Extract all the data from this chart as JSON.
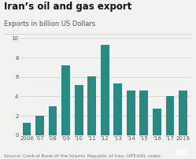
{
  "title": "Iran’s oil and gas export",
  "subtitle": "Exports in billion US Dollars",
  "categories": [
    "2006",
    "'07",
    "'08",
    "'09",
    "'10",
    "'11",
    "'12",
    "'13",
    "'14",
    "'15",
    "'16",
    "'17",
    "2019"
  ],
  "values": [
    1.3,
    2.0,
    3.0,
    7.2,
    5.2,
    6.1,
    9.3,
    5.3,
    4.6,
    4.6,
    2.7,
    4.0,
    4.6
  ],
  "bar_color": "#2a8a82",
  "background_color": "#f2f2f0",
  "ylim": [
    0,
    10
  ],
  "yticks": [
    0,
    2,
    4,
    6,
    8,
    10
  ],
  "source_text": "Source: Central Bank of the Islamic Republic of Iran, IATEX0IL index",
  "title_fontsize": 8.5,
  "subtitle_fontsize": 6.0,
  "tick_fontsize": 5.0,
  "source_fontsize": 4.2
}
